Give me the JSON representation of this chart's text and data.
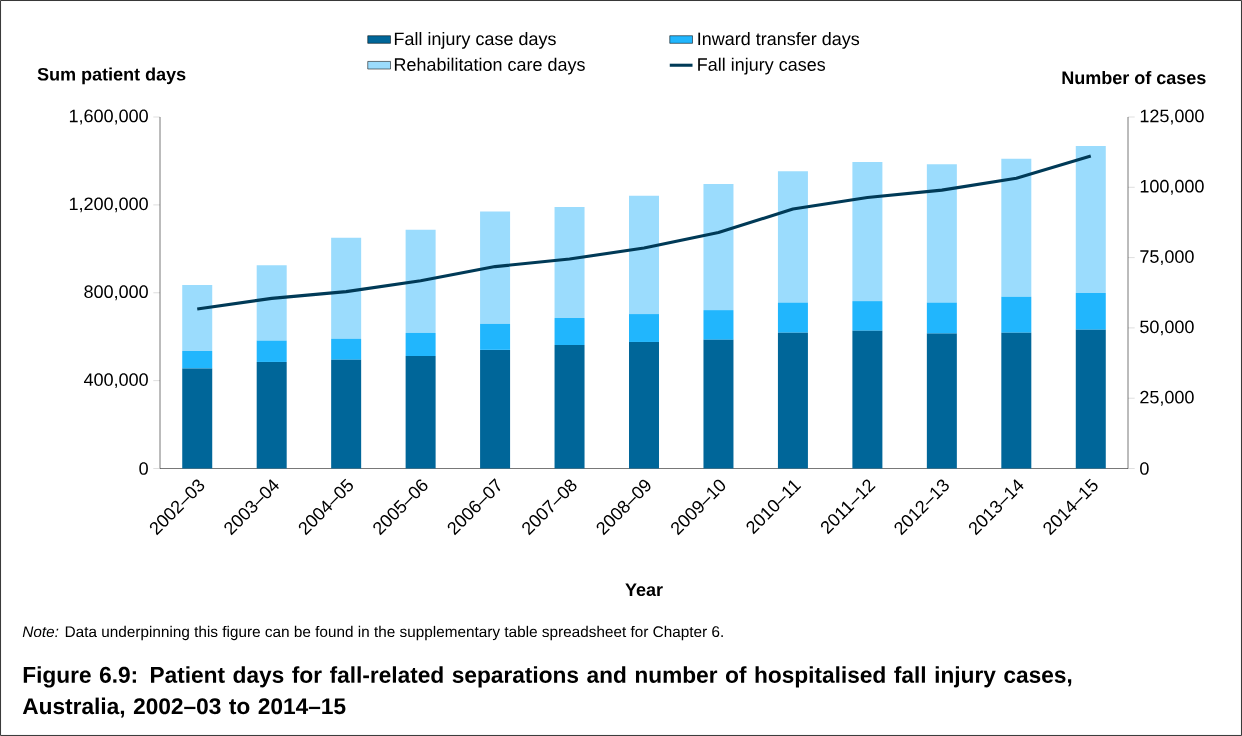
{
  "chart_data": {
    "type": "bar",
    "stacked": true,
    "title": "Figure 6.9: Patient days for fall-related separations and number of hospitalised fall injury cases, Australia, 2002–03 to 2014–15",
    "xlabel": "Year",
    "ylabel": "Sum patient days",
    "y2label": "Number of cases",
    "categories": [
      "2002–03",
      "2003–04",
      "2004–05",
      "2005–06",
      "2006–07",
      "2007–08",
      "2008–09",
      "2009–10",
      "2010–11",
      "2011–12",
      "2012–13",
      "2013–14",
      "2014–15"
    ],
    "series": [
      {
        "name": "Fall injury case days",
        "color": "#006699",
        "values": [
          455000,
          485000,
          495000,
          512000,
          540000,
          562000,
          576000,
          586000,
          618000,
          627000,
          614000,
          618000,
          632000
        ]
      },
      {
        "name": "Inward transfer days",
        "color": "#21b6fd",
        "values": [
          80000,
          97000,
          95000,
          105000,
          118000,
          123000,
          127000,
          135000,
          137000,
          135000,
          141000,
          164000,
          167000
        ]
      },
      {
        "name": "Rehabilitation care days",
        "color": "#9bdcfd",
        "values": [
          300000,
          343000,
          460000,
          470000,
          512000,
          505000,
          539000,
          574000,
          598000,
          633000,
          630000,
          628000,
          669000
        ]
      },
      {
        "name": "Fall injury cases",
        "type": "line",
        "axis": "y2",
        "color": "#003a57",
        "values": [
          56700,
          60500,
          62900,
          66800,
          71800,
          74500,
          78400,
          83900,
          92300,
          96400,
          99000,
          103200,
          111100
        ]
      }
    ],
    "ylim": [
      0,
      1600000
    ],
    "yticks": [
      0,
      {
        "value": 400000,
        "label": "400,000"
      },
      {
        "value": 800000,
        "label": "800,000"
      },
      {
        "value": 1200000,
        "label": "1,200,000"
      },
      {
        "value": 1600000,
        "label": "1,600,000"
      }
    ],
    "y2lim": [
      0,
      125000
    ],
    "y2ticks": [
      0,
      {
        "value": 25000,
        "label": "25,000"
      },
      {
        "value": 50000,
        "label": "50,000"
      },
      {
        "value": 75000,
        "label": "75,000"
      },
      {
        "value": 100000,
        "label": "100,000"
      },
      {
        "value": 125000,
        "label": "125,000"
      }
    ],
    "legend": "top",
    "annotations": [
      "*Note:* Data underpinning this figure can be found in the supplementary table spreadsheet for Chapter 6."
    ]
  }
}
